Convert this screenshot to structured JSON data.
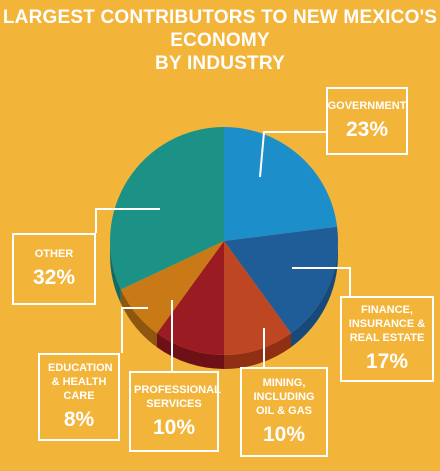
{
  "chart_data": {
    "type": "pie",
    "title": "LARGEST CONTRIBUTORS TO NEW MEXICO'S ECONOMY",
    "subtitle": "BY INDUSTRY",
    "slices": [
      {
        "label": "GOVERNMENT",
        "value": 23,
        "display": "23%",
        "color": "#1C8FCB",
        "side": "#136EA2"
      },
      {
        "label": "FINANCE, INSURANCE & REAL ESTATE",
        "value": 17,
        "display": "17%",
        "color": "#1E5D97",
        "side": "#174A7A"
      },
      {
        "label": "MINING, INCLUDING OIL & GAS",
        "value": 10,
        "display": "10%",
        "color": "#BF4622",
        "side": "#8F2F14"
      },
      {
        "label": "PROFESSIONAL SERVICES",
        "value": 10,
        "display": "10%",
        "color": "#9B1B22",
        "side": "#6E1117"
      },
      {
        "label": "EDUCATION & HEALTH CARE",
        "value": 8,
        "display": "8%",
        "color": "#C97A16",
        "side": "#8E560E"
      },
      {
        "label": "OTHER",
        "value": 32,
        "display": "32%",
        "color": "#1B9285",
        "side": "#136A60"
      }
    ]
  }
}
